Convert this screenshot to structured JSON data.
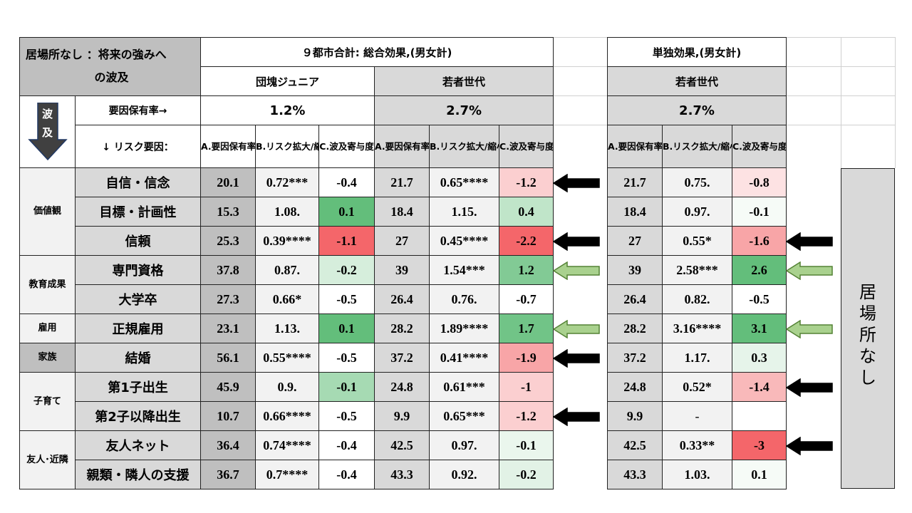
{
  "header": {
    "title_line1": "居場所なし ：将来の強みへ",
    "title_line2": "の波及",
    "total_effect": "９都市合計: 総合効果,(男女計)",
    "single_effect": "単独効果,(男女計)",
    "group_dankai": "団塊ジュニア",
    "group_wakamono": "若者世代",
    "group_wakamono_single": "若者世代",
    "rate_label": "要因保有率→",
    "risk_label": "↓ リスク要因：",
    "rate_dankai": "1.2%",
    "rate_wakamono": "2.7%",
    "rate_wakamono_single": "2.7%",
    "wave_label_1": "波",
    "wave_label_2": "及",
    "col_a": "A.要因保有率(%)",
    "col_b_1": "B.リスク拡大/縮小率",
    "col_b_2": "B.リスク拡大/縮小率",
    "col_c": "C.波及寄与度",
    "side_label": "居\n場\n所\nな\nし"
  },
  "categories": [
    {
      "label": "価値観",
      "rows": 3
    },
    {
      "label": "教育成果",
      "rows": 2
    },
    {
      "label": "雇用",
      "rows": 1
    },
    {
      "label": "家族",
      "rows": 1
    },
    {
      "label": "子育て",
      "rows": 2
    },
    {
      "label": "友人･近隣",
      "rows": 2
    }
  ],
  "rows": [
    {
      "item": "自信・信念",
      "d_a": "20.1",
      "d_b": "0.72***",
      "d_c": "-0.4",
      "w_a": "21.7",
      "w_b": "0.65****",
      "w_c": "-1.2",
      "s_a": "21.7",
      "s_b": "0.75.",
      "s_c": "-0.8"
    },
    {
      "item": "目標・計画性",
      "d_a": "15.3",
      "d_b": "1.08.",
      "d_c": "0.1",
      "w_a": "18.4",
      "w_b": "1.15.",
      "w_c": "0.4",
      "s_a": "18.4",
      "s_b": "0.97.",
      "s_c": "-0.1"
    },
    {
      "item": "信頼",
      "d_a": "25.3",
      "d_b": "0.39****",
      "d_c": "-1.1",
      "w_a": "27",
      "w_b": "0.45****",
      "w_c": "-2.2",
      "s_a": "27",
      "s_b": "0.55*",
      "s_c": "-1.6"
    },
    {
      "item": "専門資格",
      "d_a": "37.8",
      "d_b": "0.87.",
      "d_c": "-0.2",
      "w_a": "39",
      "w_b": "1.54***",
      "w_c": "1.2",
      "s_a": "39",
      "s_b": "2.58***",
      "s_c": "2.6"
    },
    {
      "item": "大学卒",
      "d_a": "27.3",
      "d_b": "0.66*",
      "d_c": "-0.5",
      "w_a": "26.4",
      "w_b": "0.76.",
      "w_c": "-0.7",
      "s_a": "26.4",
      "s_b": "0.82.",
      "s_c": "-0.5"
    },
    {
      "item": "正規雇用",
      "d_a": "23.1",
      "d_b": "1.13.",
      "d_c": "0.1",
      "w_a": "28.2",
      "w_b": "1.89****",
      "w_c": "1.7",
      "s_a": "28.2",
      "s_b": "3.16****",
      "s_c": "3.1"
    },
    {
      "item": "結婚",
      "d_a": "56.1",
      "d_b": "0.55****",
      "d_c": "-0.5",
      "w_a": "37.2",
      "w_b": "0.41****",
      "w_c": "-1.9",
      "s_a": "37.2",
      "s_b": "1.17.",
      "s_c": "0.3"
    },
    {
      "item": "第1子出生",
      "d_a": "45.9",
      "d_b": "0.9.",
      "d_c": "-0.1",
      "w_a": "24.8",
      "w_b": "0.61***",
      "w_c": "-1",
      "s_a": "24.8",
      "s_b": "0.52*",
      "s_c": "-1.4"
    },
    {
      "item": "第2子以降出生",
      "d_a": "10.7",
      "d_b": "0.66****",
      "d_c": "-0.5",
      "w_a": "9.9",
      "w_b": "0.65***",
      "w_c": "-1.2",
      "s_a": "9.9",
      "s_b": "-",
      "s_c": ""
    },
    {
      "item": "友人ネット",
      "d_a": "36.4",
      "d_b": "0.74****",
      "d_c": "-0.4",
      "w_a": "42.5",
      "w_b": "0.97.",
      "w_c": "-0.1",
      "s_a": "42.5",
      "s_b": "0.33**",
      "s_c": "-3"
    },
    {
      "item": "親類・隣人の支援",
      "d_a": "36.7",
      "d_b": "0.7****",
      "d_c": "-0.4",
      "w_a": "43.3",
      "w_b": "0.92.",
      "w_c": "-0.2",
      "s_a": "43.3",
      "s_b": "1.03.",
      "s_c": "0.1"
    }
  ],
  "colors": {
    "neg_strong": "#f4666a",
    "neg_mid": "#f8a5a7",
    "neg_light": "#fde2e3",
    "pos_strong": "#63be7b",
    "pos_mid": "#92d2a2",
    "pos_light": "#d6eedc",
    "arrow_black": "#000000",
    "arrow_green": "#a9d18e"
  },
  "arrows": [
    {
      "row": 0,
      "col": "total",
      "type": "black"
    },
    {
      "row": 2,
      "col": "total",
      "type": "black"
    },
    {
      "row": 2,
      "col": "single",
      "type": "black"
    },
    {
      "row": 3,
      "col": "total",
      "type": "green"
    },
    {
      "row": 3,
      "col": "single",
      "type": "green"
    },
    {
      "row": 5,
      "col": "total",
      "type": "green"
    },
    {
      "row": 5,
      "col": "single",
      "type": "green"
    },
    {
      "row": 6,
      "col": "total",
      "type": "black"
    },
    {
      "row": 7,
      "col": "single",
      "type": "black"
    },
    {
      "row": 8,
      "col": "total",
      "type": "black"
    },
    {
      "row": 9,
      "col": "single",
      "type": "black"
    }
  ]
}
